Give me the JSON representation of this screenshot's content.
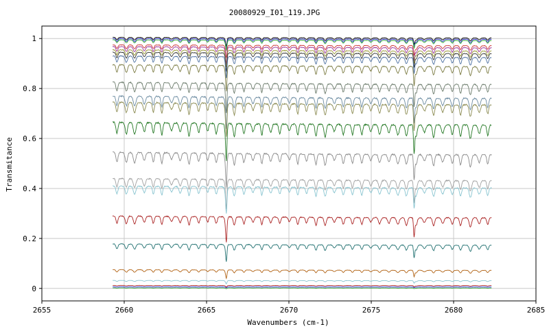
{
  "chart_data": {
    "type": "line",
    "title": "20080929_I01_119.JPG",
    "xlabel": "Wavenumbers (cm-1)",
    "ylabel": "Transmitance",
    "xlim": [
      2655,
      2685
    ],
    "ylim": [
      -0.05,
      1.05
    ],
    "x_range": [
      2659.3,
      2682.3
    ],
    "x_ticks": [
      2655,
      2660,
      2665,
      2670,
      2675,
      2680,
      2685
    ],
    "y_ticks": [
      0,
      0.2,
      0.4,
      0.6,
      0.8,
      1
    ],
    "x_tick_labels": [
      "2655",
      "2660",
      "2665",
      "2670",
      "2675",
      "2680",
      "2685"
    ],
    "y_tick_labels": [
      "0",
      "0.2",
      "0.4",
      "0.6",
      "0.8",
      "1"
    ],
    "grid": true,
    "line_spacing_cm1": 0.55,
    "series": [
      {
        "color": "#000000",
        "baseline": 1.005,
        "depth": 0.01
      },
      {
        "color": "#2b2bcc",
        "baseline": 1.0,
        "depth": 0.012
      },
      {
        "color": "#33aa33",
        "baseline": 0.995,
        "depth": 0.012
      },
      {
        "color": "#cc3333",
        "baseline": 0.975,
        "depth": 0.015
      },
      {
        "color": "#993399",
        "baseline": 0.968,
        "depth": 0.02
      },
      {
        "color": "#999933",
        "baseline": 0.955,
        "depth": 0.02
      },
      {
        "color": "#333333",
        "baseline": 0.945,
        "depth": 0.022
      },
      {
        "color": "#4a6fa0",
        "baseline": 0.93,
        "depth": 0.025
      },
      {
        "color": "#7a7a40",
        "baseline": 0.895,
        "depth": 0.03
      },
      {
        "color": "#6b7b6b",
        "baseline": 0.825,
        "depth": 0.035
      },
      {
        "color": "#6a8aa0",
        "baseline": 0.77,
        "depth": 0.038
      },
      {
        "color": "#8a8a50",
        "baseline": 0.745,
        "depth": 0.04
      },
      {
        "color": "#227722",
        "baseline": 0.665,
        "depth": 0.045
      },
      {
        "color": "#8a8a8a",
        "baseline": 0.545,
        "depth": 0.04
      },
      {
        "color": "#a0a0a0",
        "baseline": 0.44,
        "depth": 0.035
      },
      {
        "color": "#88c4d0",
        "baseline": 0.41,
        "depth": 0.032
      },
      {
        "color": "#aa2222",
        "baseline": 0.29,
        "depth": 0.03
      },
      {
        "color": "#207070",
        "baseline": 0.178,
        "depth": 0.02
      },
      {
        "color": "#b06010",
        "baseline": 0.075,
        "depth": 0.01
      },
      {
        "color": "#88c4d0",
        "baseline": 0.032,
        "depth": 0.004
      },
      {
        "color": "#aa2222",
        "baseline": 0.012,
        "depth": 0.002
      },
      {
        "color": "#2b2bcc",
        "baseline": 0.006,
        "depth": 0.001
      },
      {
        "color": "#33aa33",
        "baseline": 0.002,
        "depth": 0.001
      }
    ],
    "strong_lines": [
      2666.2,
      2677.6
    ],
    "strong_depth_factor": 2.4
  }
}
